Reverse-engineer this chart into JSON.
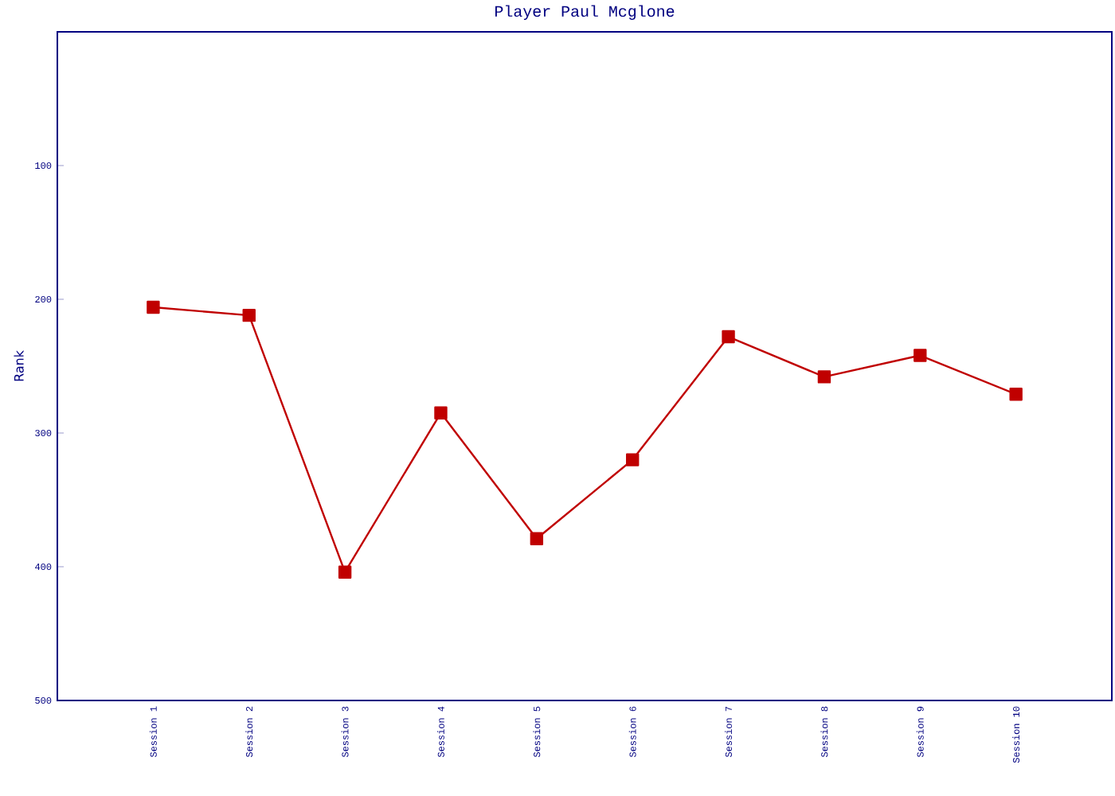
{
  "chart_data": {
    "type": "line",
    "title": "Player Paul Mcglone",
    "ylabel": "Rank",
    "categories": [
      "Session 1",
      "Session 2",
      "Session 3",
      "Session 4",
      "Session 5",
      "Session 6",
      "Session 7",
      "Session 8",
      "Session 9",
      "Session 10"
    ],
    "series": [
      {
        "color": "#c00000",
        "values": [
          206,
          212,
          404,
          285,
          379,
          320,
          228,
          258,
          242,
          271
        ]
      }
    ],
    "ylim": [
      500,
      0
    ],
    "yticks": [
      100,
      200,
      300,
      400,
      500
    ],
    "marker": "square",
    "line_style": "solid"
  }
}
